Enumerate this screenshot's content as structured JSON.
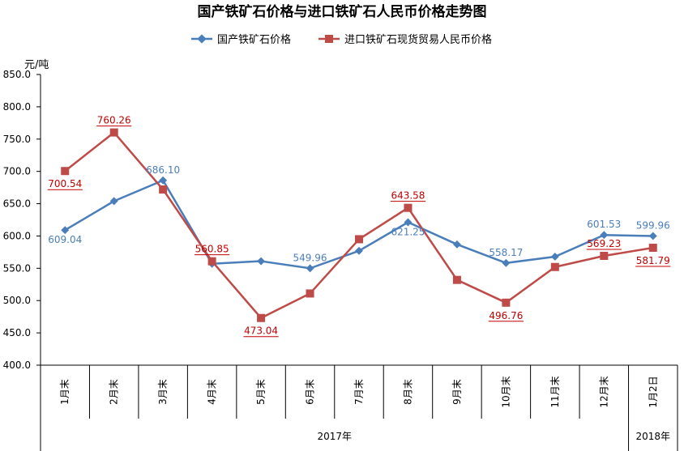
{
  "chart_data": {
    "type": "line",
    "title": "国产铁矿石价格与进口铁矿石人民币价格走势图",
    "ylabel": "元/吨",
    "ylim": [
      400,
      850
    ],
    "yticks": [
      "850.0",
      "800.0",
      "750.0",
      "700.0",
      "650.0",
      "600.0",
      "550.0",
      "500.0",
      "450.0",
      "400.0"
    ],
    "categories": [
      "1月末",
      "2月末",
      "3月末",
      "4月末",
      "5月末",
      "6月末",
      "7月末",
      "8月末",
      "9月末",
      "10月末",
      "11月末",
      "12月末",
      "1月2日"
    ],
    "year_groups": [
      {
        "label": "2017年",
        "count": 12
      },
      {
        "label": "2018年",
        "count": 1
      }
    ],
    "legend_position": "top",
    "grid": false,
    "series": [
      {
        "name": "国产铁矿石价格",
        "color": "#4A7EBB",
        "marker": "diamond",
        "values": [
          609.04,
          654,
          686.1,
          557,
          561,
          549.96,
          577,
          621.25,
          587,
          558.17,
          568,
          601.53,
          599.96
        ],
        "labels": [
          "609.04",
          "",
          "686.10",
          "",
          "",
          "549.96",
          "",
          "621.25",
          "",
          "558.17",
          "",
          "601.53",
          "599.96"
        ]
      },
      {
        "name": "进口铁矿石现货贸易人民币价格",
        "color": "#BE4B48",
        "marker": "square",
        "values": [
          700.54,
          760.26,
          672,
          560.85,
          473.04,
          511,
          595,
          643.58,
          532,
          496.76,
          552,
          569.23,
          581.79
        ],
        "labels": [
          "700.54",
          "760.26",
          "",
          "560.85",
          "473.04",
          "",
          "",
          "643.58",
          "",
          "496.76",
          "",
          "569.23",
          "581.79"
        ]
      }
    ]
  }
}
